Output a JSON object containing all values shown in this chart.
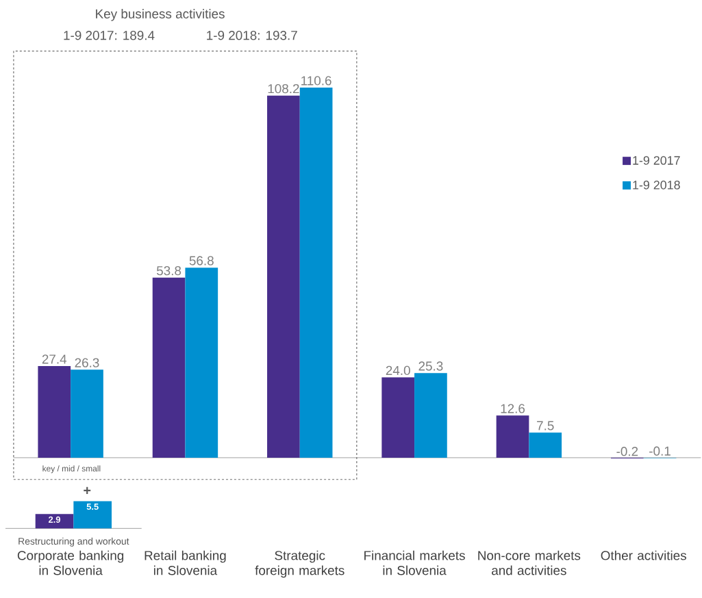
{
  "chart_data": [
    {
      "type": "bar",
      "categories": [
        "Corporate banking in Slovenia",
        "Retail banking in Slovenia",
        "Strategic foreign markets",
        "Financial markets in Slovenia",
        "Non-core markets and activities",
        "Other activities"
      ],
      "series": [
        {
          "name": "1-9 2017",
          "color": "#482e8c",
          "values": [
            27.4,
            53.8,
            108.2,
            24.0,
            12.6,
            -0.2
          ],
          "value_labels": [
            "27.4",
            "53.8",
            "108.2",
            "24.0",
            "12.6",
            "-0.2"
          ]
        },
        {
          "name": "1-9 2018",
          "color": "#0090d0",
          "values": [
            26.3,
            56.8,
            110.6,
            25.3,
            7.5,
            -0.1
          ],
          "value_labels": [
            "26.3",
            "56.8",
            "110.6",
            "25.3",
            "7.5",
            "-0.1"
          ]
        }
      ],
      "legend": "right",
      "annotations": [
        "Key business activities",
        "1-9 2017: 189.4",
        "1-9 2018: 193.7",
        "key / mid / small",
        "+"
      ]
    },
    {
      "type": "bar",
      "categories": [
        null
      ],
      "xlabel": "Restructuring and workout",
      "series": [
        {
          "color": "#482e8c",
          "values": [
            2.9
          ],
          "value_labels": [
            "2.9"
          ]
        },
        {
          "color": "#0090d0",
          "values": [
            5.5
          ],
          "value_labels": [
            "5.5"
          ]
        }
      ]
    }
  ]
}
